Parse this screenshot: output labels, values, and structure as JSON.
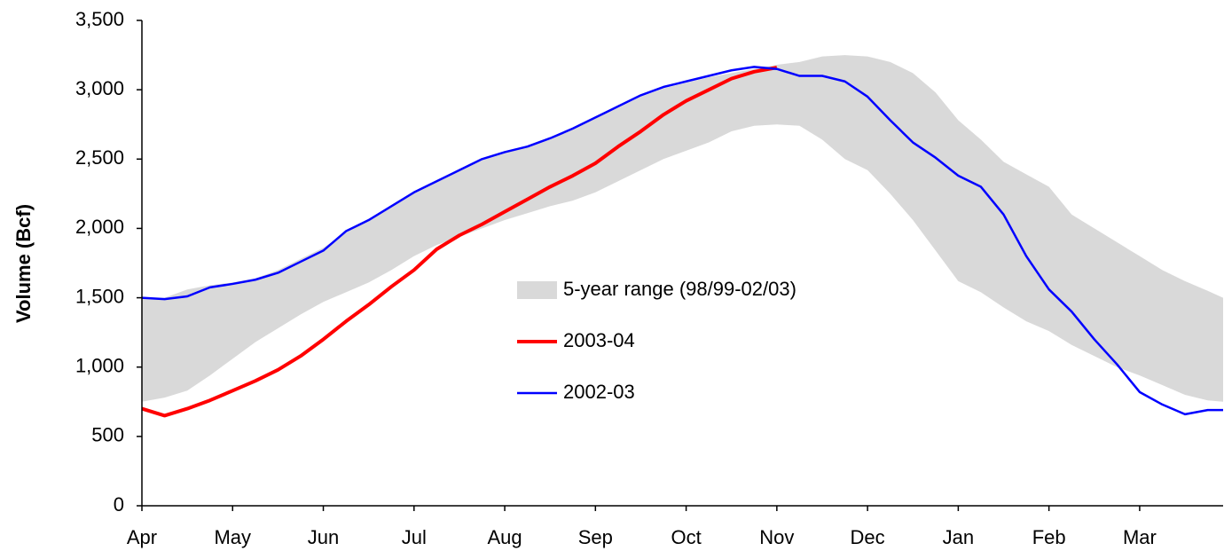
{
  "chart_data": {
    "type": "line",
    "y_label": "Volume (Bcf)",
    "x": [
      0,
      0.25,
      0.5,
      0.75,
      1,
      1.25,
      1.5,
      1.75,
      2,
      2.25,
      2.5,
      2.75,
      3,
      3.25,
      3.5,
      3.75,
      4,
      4.25,
      4.5,
      4.75,
      5,
      5.25,
      5.5,
      5.75,
      6,
      6.25,
      6.5,
      6.75,
      7,
      7.25,
      7.5,
      7.75,
      8,
      8.25,
      8.5,
      8.75,
      9,
      9.25,
      9.5,
      9.75,
      10,
      10.25,
      10.5,
      10.75,
      11,
      11.25,
      11.5,
      11.75,
      11.92
    ],
    "xlim": [
      0,
      11.92
    ],
    "xticks": [
      {
        "value": 0,
        "label": "Apr"
      },
      {
        "value": 1,
        "label": "May"
      },
      {
        "value": 2,
        "label": "Jun"
      },
      {
        "value": 3,
        "label": "Jul"
      },
      {
        "value": 4,
        "label": "Aug"
      },
      {
        "value": 5,
        "label": "Sep"
      },
      {
        "value": 6,
        "label": "Oct"
      },
      {
        "value": 7,
        "label": "Nov"
      },
      {
        "value": 8,
        "label": "Dec"
      },
      {
        "value": 9,
        "label": "Jan"
      },
      {
        "value": 10,
        "label": "Feb"
      },
      {
        "value": 11,
        "label": "Mar"
      }
    ],
    "ylim": [
      0,
      3500
    ],
    "yticks": [
      0,
      500,
      {
        "value": 1000,
        "label": "1,000"
      },
      {
        "value": 1500,
        "label": "1,500"
      },
      {
        "value": 2000,
        "label": "2,000"
      },
      {
        "value": 2500,
        "label": "2,500"
      },
      {
        "value": 3000,
        "label": "3,000"
      },
      {
        "value": 3500,
        "label": "3,500"
      }
    ],
    "grid": false,
    "series": [
      {
        "name": "5-year range (98/99-02/03)",
        "color": "#d9d9d9",
        "low": [
          750,
          780,
          830,
          940,
          1060,
          1180,
          1280,
          1380,
          1470,
          1540,
          1610,
          1700,
          1800,
          1880,
          1940,
          2000,
          2060,
          2110,
          2160,
          2200,
          2260,
          2340,
          2420,
          2500,
          2560,
          2620,
          2700,
          2740,
          2750,
          2740,
          2640,
          2500,
          2420,
          2250,
          2060,
          1840,
          1620,
          1540,
          1430,
          1330,
          1260,
          1160,
          1080,
          1000,
          940,
          870,
          800,
          760,
          750
        ],
        "high": [
          1500,
          1500,
          1560,
          1590,
          1610,
          1640,
          1700,
          1780,
          1860,
          1970,
          2060,
          2160,
          2260,
          2340,
          2420,
          2490,
          2550,
          2590,
          2640,
          2720,
          2800,
          2870,
          2950,
          3010,
          3050,
          3090,
          3120,
          3150,
          3180,
          3200,
          3240,
          3250,
          3240,
          3200,
          3120,
          2980,
          2780,
          2640,
          2480,
          2390,
          2300,
          2100,
          2000,
          1900,
          1800,
          1700,
          1620,
          1550,
          1500
        ]
      },
      {
        "name": "2003-04",
        "color": "#ff0000",
        "values": [
          700,
          650,
          700,
          760,
          830,
          900,
          980,
          1080,
          1200,
          1330,
          1450,
          1580,
          1700,
          1850,
          1950,
          2030,
          2120,
          2210,
          2300,
          2380,
          2470,
          2590,
          2700,
          2820,
          2920,
          3000,
          3080,
          3130,
          3160,
          null,
          null,
          null,
          null,
          null,
          null,
          null,
          null,
          null,
          null,
          null,
          null,
          null,
          null,
          null,
          null,
          null,
          null,
          null,
          null
        ]
      },
      {
        "name": "2002-03",
        "color": "#0000ff",
        "values": [
          1500,
          1490,
          1510,
          1575,
          1600,
          1630,
          1680,
          1760,
          1840,
          1980,
          2060,
          2160,
          2260,
          2340,
          2420,
          2500,
          2550,
          2590,
          2650,
          2720,
          2800,
          2880,
          2960,
          3020,
          3060,
          3100,
          3140,
          3165,
          3150,
          3100,
          3100,
          3060,
          2950,
          2780,
          2620,
          2510,
          2380,
          2300,
          2100,
          1800,
          1560,
          1400,
          1200,
          1020,
          820,
          730,
          660,
          690,
          690
        ]
      }
    ]
  }
}
